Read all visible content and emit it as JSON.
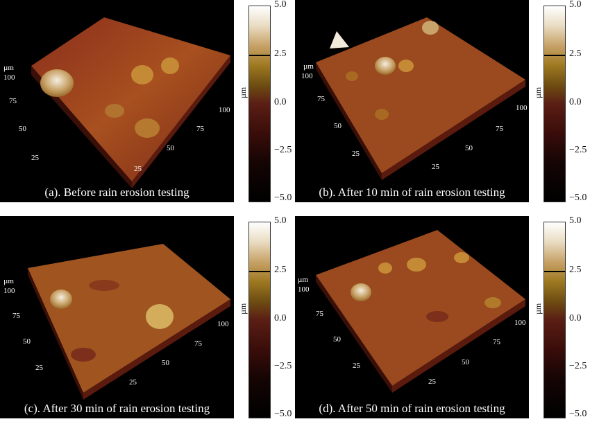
{
  "panels": [
    {
      "caption": "(a). Before rain erosion testing"
    },
    {
      "caption": "(b). After 10 min of rain erosion testing"
    },
    {
      "caption": "(c). After 30 min of rain erosion testing"
    },
    {
      "caption": "(d). After 50 min of rain erosion testing"
    }
  ],
  "axis": {
    "unit": "µm",
    "y_ticks": [
      "100",
      "75",
      "50",
      "25"
    ],
    "x_ticks": [
      "25",
      "50",
      "75",
      "100"
    ]
  },
  "colorbar": {
    "unit": "µm",
    "ticks": [
      "5.0",
      "2.5",
      "0.0",
      "−2.5",
      "−5.0"
    ]
  },
  "colors": {
    "background": "#000000",
    "surface": "#9a4a1e",
    "highlight": "#e8dcc6"
  }
}
